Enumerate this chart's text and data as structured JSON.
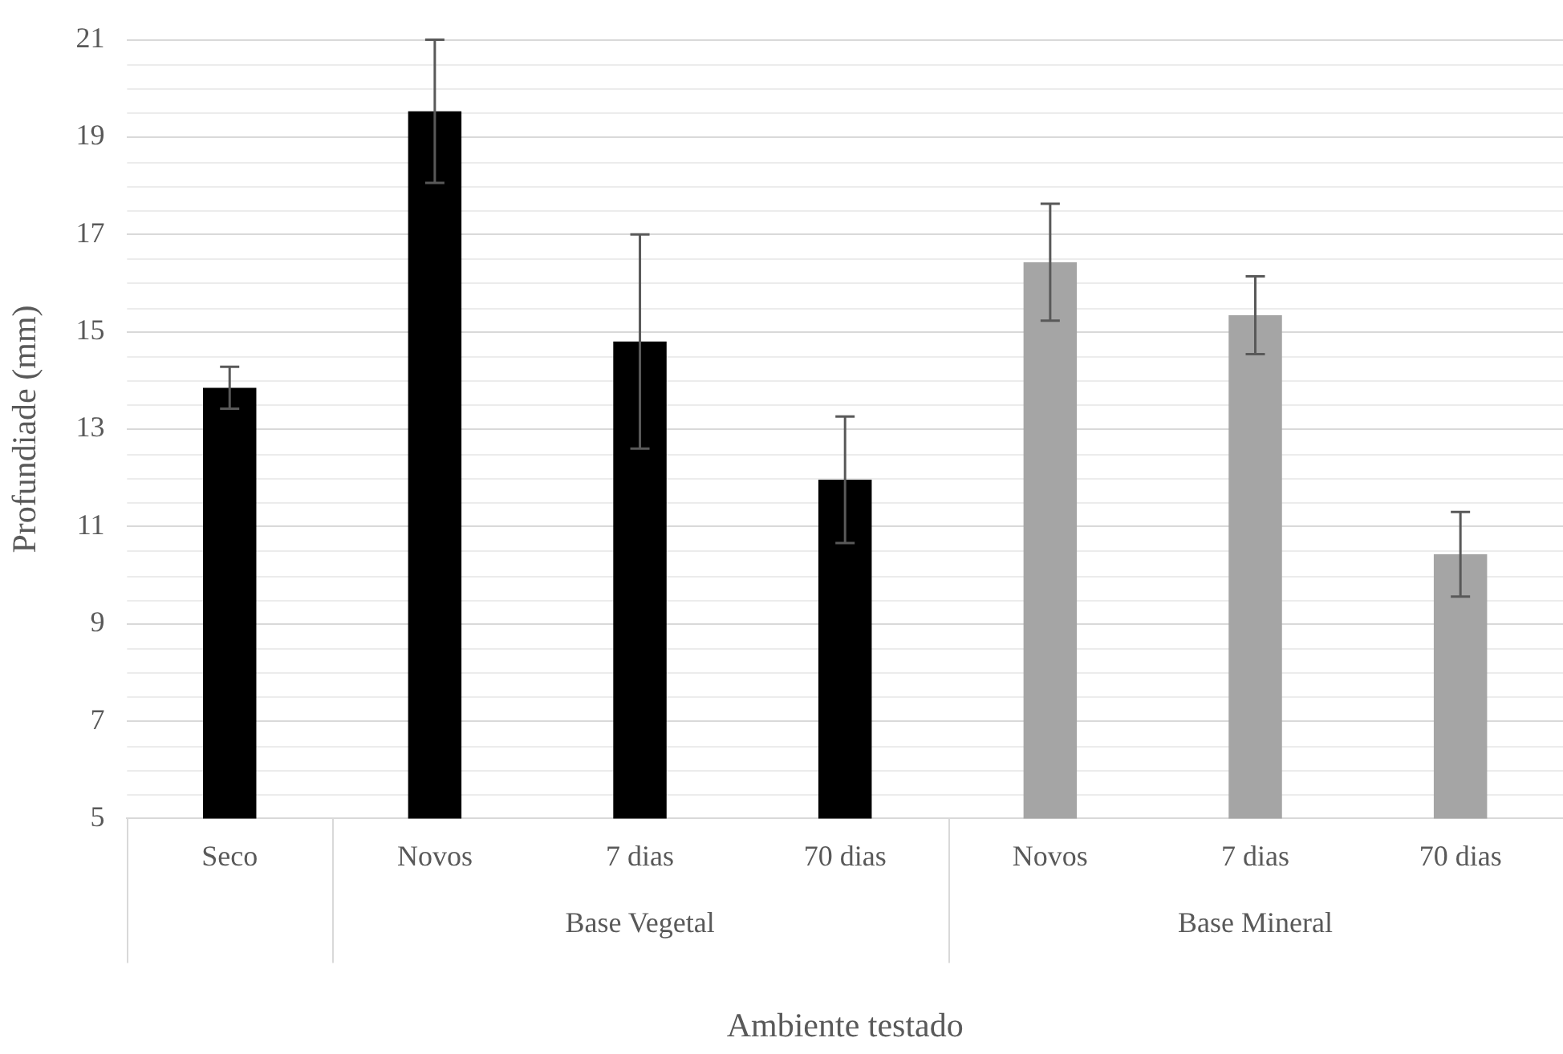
{
  "chart_data": {
    "type": "bar",
    "xlabel": "Ambiente testado",
    "ylabel": "Profundiade (mm)",
    "categories": [
      "Seco",
      "Novos",
      "7 dias",
      "70 dias",
      "Novos",
      "7 dias",
      "70 dias"
    ],
    "values": [
      13.85,
      19.53,
      14.8,
      11.96,
      16.43,
      15.34,
      10.43
    ],
    "errors": [
      0.43,
      1.47,
      2.2,
      1.3,
      1.2,
      0.8,
      0.87
    ],
    "colors": [
      "#000000",
      "#000000",
      "#000000",
      "#000000",
      "#a5a5a5",
      "#a5a5a5",
      "#a5a5a5"
    ],
    "ylim": [
      5,
      21
    ],
    "yticks": [
      5,
      7,
      9,
      11,
      13,
      15,
      17,
      19,
      21
    ],
    "grid": "y",
    "annotations": [
      "Base Vegetal",
      "Base Mineral"
    ]
  }
}
